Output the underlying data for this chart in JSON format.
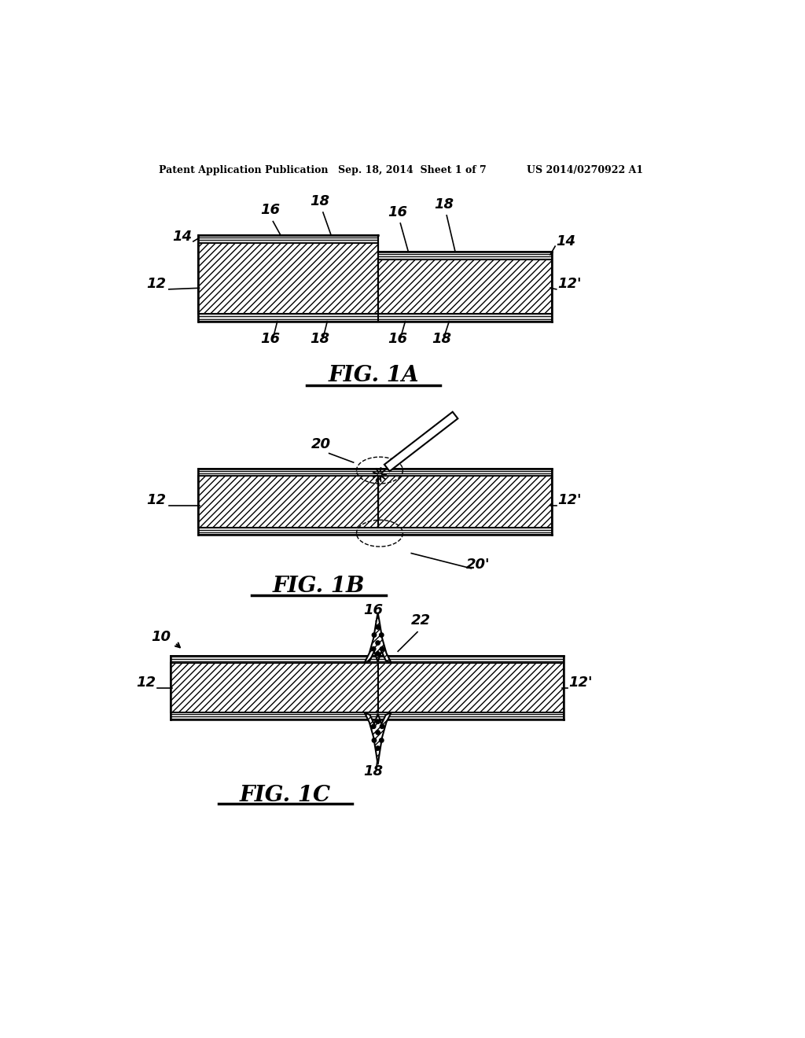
{
  "header_left": "Patent Application Publication",
  "header_mid": "Sep. 18, 2014  Sheet 1 of 7",
  "header_right": "US 2014/0270922 A1",
  "fig1a_title": "FIG. 1A",
  "fig1b_title": "FIG. 1B",
  "fig1c_title": "FIG. 1C",
  "bg_color": "#ffffff",
  "line_color": "#000000",
  "label_fontsize": 13,
  "fig_title_fontsize": 20
}
